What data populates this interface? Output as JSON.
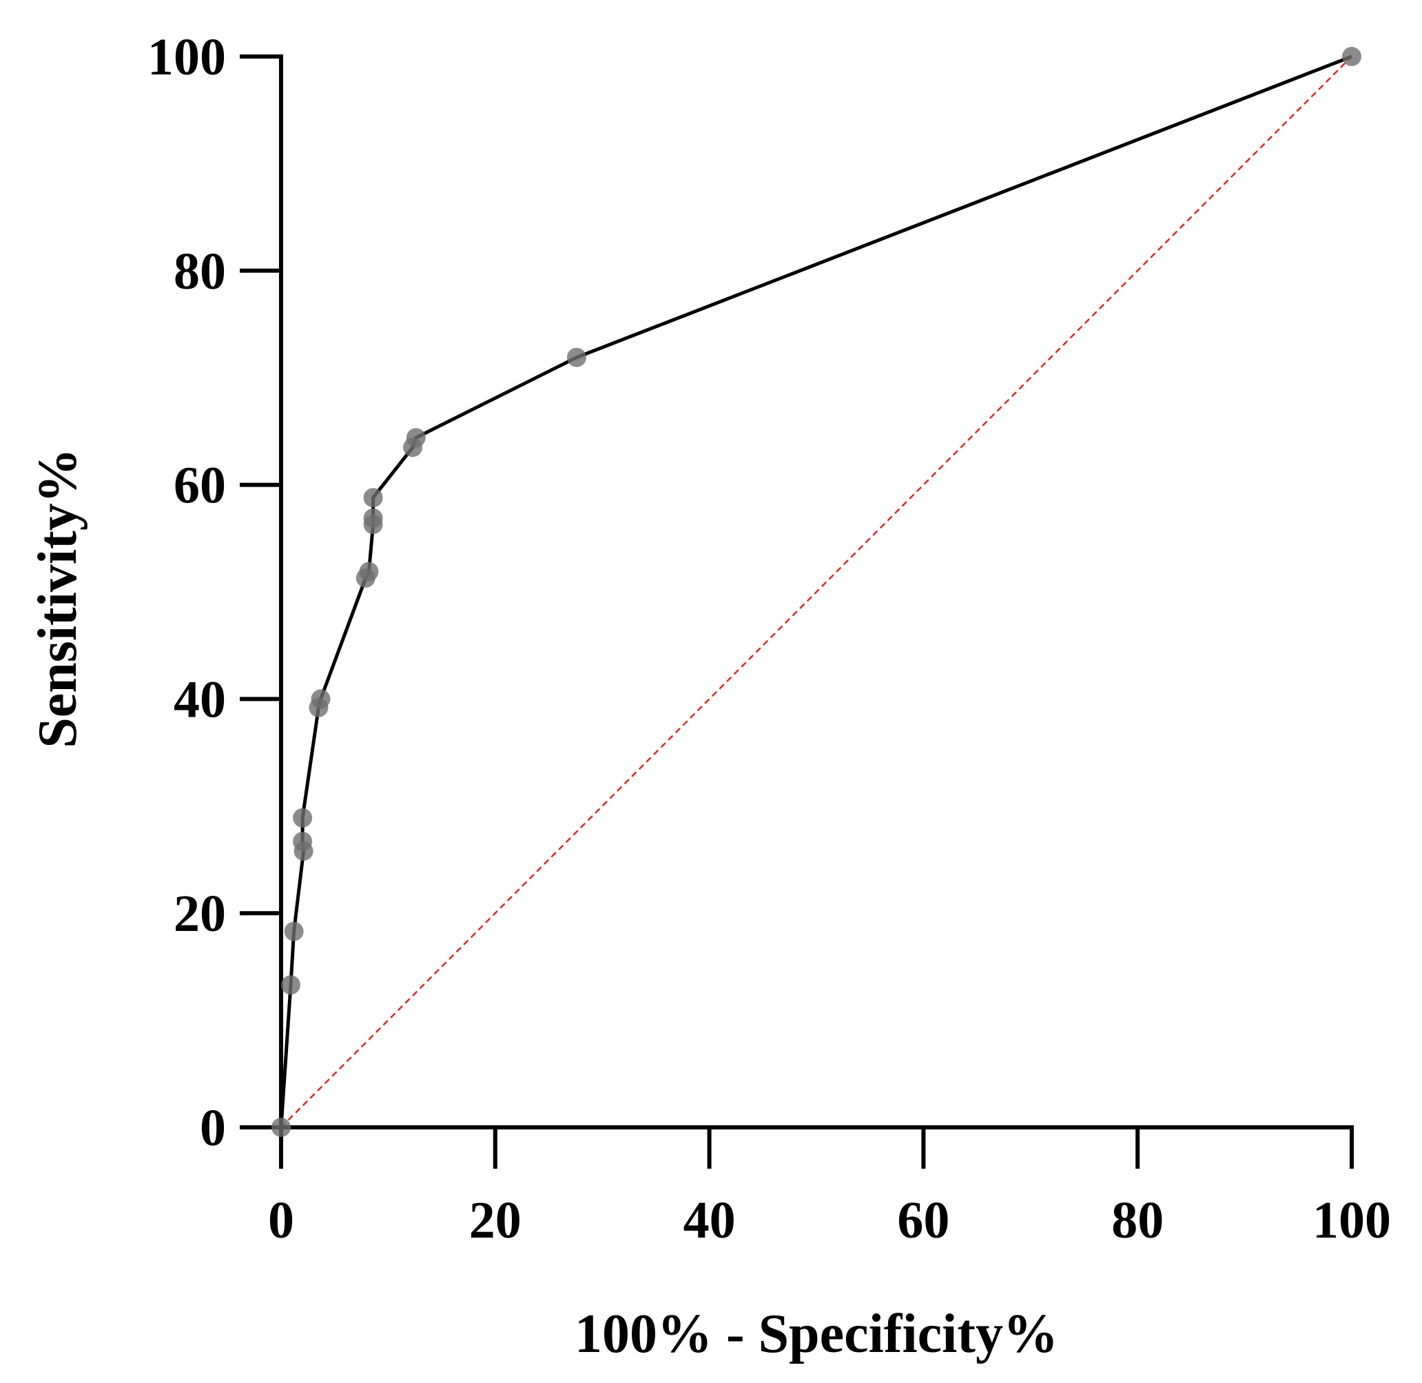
{
  "chart_data": {
    "type": "line",
    "title": "",
    "xlabel": "100% - Specificity%",
    "ylabel": "Sensitivity%",
    "xlim": [
      0,
      100
    ],
    "ylim": [
      0,
      100
    ],
    "x_ticks": [
      "0",
      "20",
      "40",
      "60",
      "80",
      "100"
    ],
    "y_ticks": [
      "0",
      "20",
      "40",
      "60",
      "80",
      "100"
    ],
    "grid": false,
    "series": [
      {
        "type": "line-with-markers",
        "color": "#000000",
        "marker_color": "#6e6e6e",
        "x": [
          0,
          0.9,
          1.2,
          2.1,
          2.0,
          2.0,
          3.5,
          3.7,
          7.9,
          8.2,
          8.6,
          8.6,
          8.6,
          12.3,
          12.6,
          27.6,
          100
        ],
        "y": [
          0,
          13.3,
          18.3,
          25.8,
          26.7,
          28.9,
          39.2,
          40.0,
          51.3,
          51.9,
          56.3,
          56.9,
          58.8,
          63.5,
          64.4,
          71.9,
          100
        ]
      },
      {
        "type": "reference-line",
        "color": "#e8241c",
        "dashed": true,
        "x": [
          0,
          100
        ],
        "y": [
          0,
          100
        ]
      }
    ]
  }
}
